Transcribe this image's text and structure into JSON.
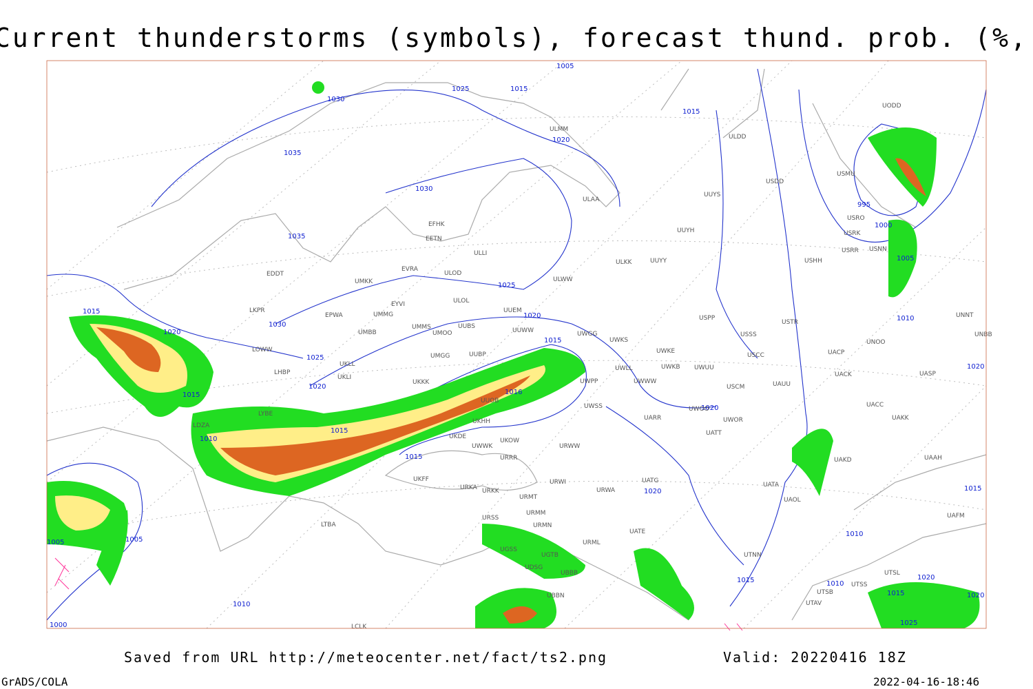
{
  "header": {
    "title": "Current thunderstorms (symbols), forecast thund. prob. (%, shaded)"
  },
  "map": {
    "isobar_labels": [
      1005,
      1025,
      1015,
      1030,
      1015,
      1020,
      1035,
      1030,
      1035,
      995,
      1000,
      1005,
      1025,
      1015,
      1030,
      1020,
      1020,
      1015,
      1025,
      1010,
      1020,
      1015,
      1016,
      1015,
      1010,
      1015,
      1020,
      1020,
      1005,
      1005,
      1010,
      1010,
      1015,
      1015,
      1020,
      1020,
      1025,
      1000,
      1010,
      1015,
      1020
    ],
    "stations": [
      "ULMM",
      "ULDD",
      "USDD",
      "USMU",
      "UUYS",
      "ULAA",
      "USRO",
      "USRK",
      "USNN",
      "USRR",
      "UUYH",
      "EFHK",
      "EETN",
      "ULLI",
      "UUYY",
      "ULKK",
      "USHH",
      "EVRA",
      "ULOD",
      "EDDT",
      "ULWW",
      "UMKK",
      "ULOL",
      "EYVI",
      "UUEM",
      "LKPR",
      "EPWA",
      "UMMG",
      "USPP",
      "USTR",
      "UUWW",
      "UMMS",
      "UUBS",
      "UWGG",
      "UMOO",
      "UMBB",
      "USSS",
      "UWKS",
      "LOWW",
      "UWKE",
      "UACP",
      "USCC",
      "UMGG",
      "UUBP",
      "UKLL",
      "UWKB",
      "UWUU",
      "UWLL",
      "UACK",
      "UKLI",
      "LHBP",
      "UKKK",
      "UWPP",
      "UWWW",
      "USCM",
      "UAUU",
      "UASP",
      "UNNT",
      "UNBB",
      "UNOO",
      "UACC",
      "UAKK",
      "UWSS",
      "UARR",
      "UWOO",
      "UWOR",
      "UATT",
      "UKDE",
      "UKHH",
      "UUOB",
      "UKOW",
      "UWWK",
      "URWW",
      "URRR",
      "UKFF",
      "URKA",
      "URKK",
      "URWI",
      "URMT",
      "UATG",
      "URWA",
      "UATA",
      "UAOL",
      "UAKD",
      "UAAH",
      "UATE",
      "URSS",
      "URMM",
      "URMN",
      "URML",
      "UTNN",
      "UGSS",
      "UGTB",
      "UDSG",
      "UBBB",
      "UBBN",
      "UTSB",
      "UTAV",
      "UTSS",
      "LTBA",
      "LYBE",
      "LDZA",
      "LCLK",
      "UODD",
      "UAFM",
      "UTSL"
    ]
  },
  "footer": {
    "source": "Saved from URL http://meteocenter.net/fact/ts2.png",
    "valid": "Valid: 20220416 18Z",
    "software": "GrADS/COLA",
    "timestamp": "2022-04-16-18:46"
  }
}
